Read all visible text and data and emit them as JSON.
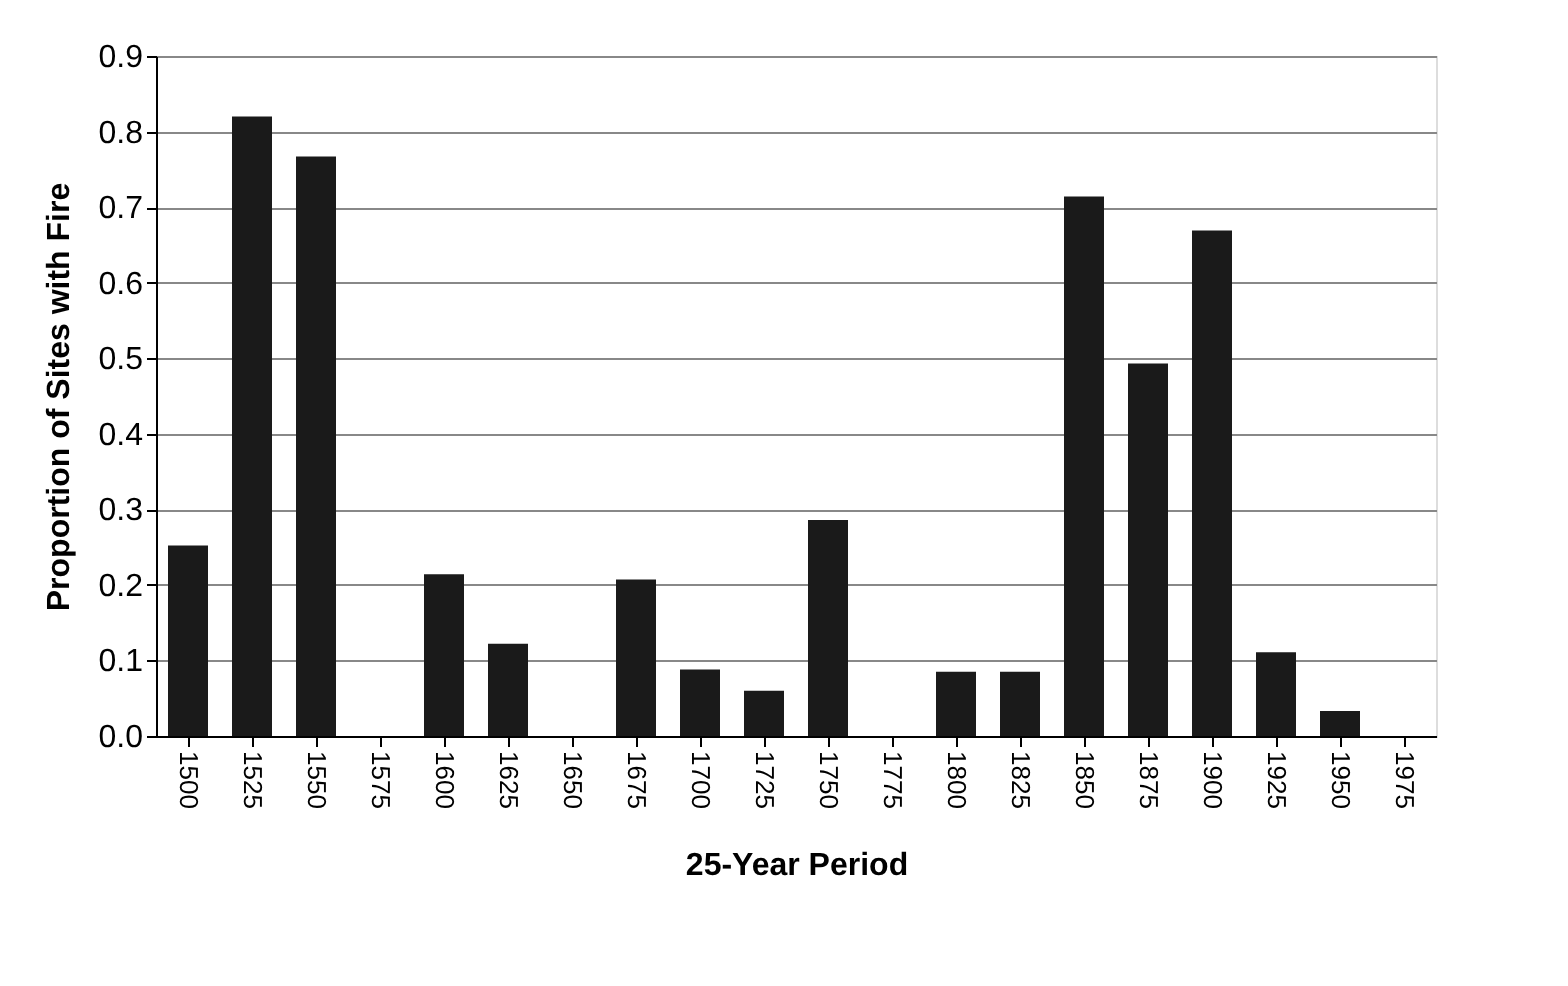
{
  "chart_data": {
    "type": "bar",
    "xlabel": "25-Year Period",
    "ylabel": "Proportion of Sites with Fire",
    "categories": [
      "1500",
      "1525",
      "1550",
      "1575",
      "1600",
      "1625",
      "1650",
      "1675",
      "1700",
      "1725",
      "1750",
      "1775",
      "1800",
      "1825",
      "1850",
      "1875",
      "1900",
      "1925",
      "1950",
      "1975"
    ],
    "values": [
      0.252,
      0.82,
      0.767,
      0,
      0.214,
      0.122,
      0,
      0.207,
      0.088,
      0.06,
      0.286,
      0,
      0.085,
      0.085,
      0.714,
      0.493,
      0.669,
      0.111,
      0.033,
      0
    ],
    "color": "#1a1a1a",
    "ylim": [
      0,
      0.9
    ],
    "yticks": [
      {
        "value": 0,
        "label": "0.0"
      },
      0.1,
      0.2,
      0.3,
      0.4,
      0.5,
      0.6,
      0.7,
      0.8,
      0.9
    ],
    "grid": "y"
  }
}
